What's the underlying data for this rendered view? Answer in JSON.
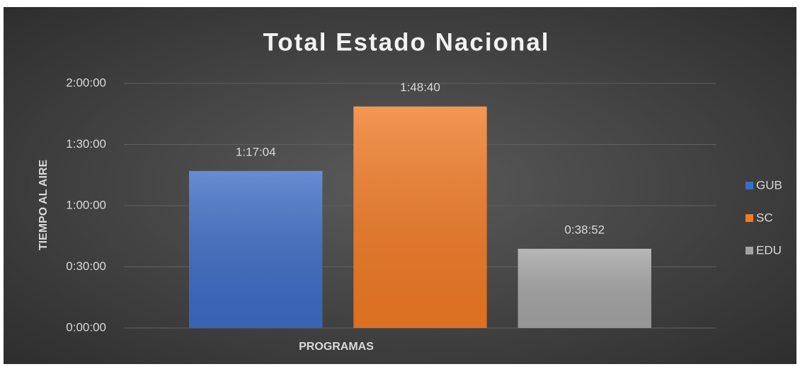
{
  "chart_data": {
    "type": "bar",
    "title": "Total Estado Nacional",
    "x_label": "PROGRAMAS",
    "y_label": "TIEMPO AL AIRE",
    "categories": [
      null
    ],
    "series": [
      {
        "name": "GUB",
        "color": "#3d6cc4",
        "values": [
          4624
        ],
        "value_labels": [
          "1:17:04"
        ]
      },
      {
        "name": "SC",
        "color": "#f07a25",
        "values": [
          6520
        ],
        "value_labels": [
          "1:48:40"
        ]
      },
      {
        "name": "EDU",
        "color": "#a3a3a3",
        "values": [
          2332
        ],
        "value_labels": [
          "0:38:52"
        ]
      }
    ],
    "ylim": [
      0,
      7200
    ],
    "yticks": [
      {
        "value": 0,
        "label": "0:00:00"
      },
      {
        "value": 1800,
        "label": "0:30:00"
      },
      {
        "value": 3600,
        "label": "1:00:00"
      },
      {
        "value": 5400,
        "label": "1:30:00"
      },
      {
        "value": 7200,
        "label": "2:00:00"
      }
    ],
    "grid": true,
    "legend": "right"
  }
}
